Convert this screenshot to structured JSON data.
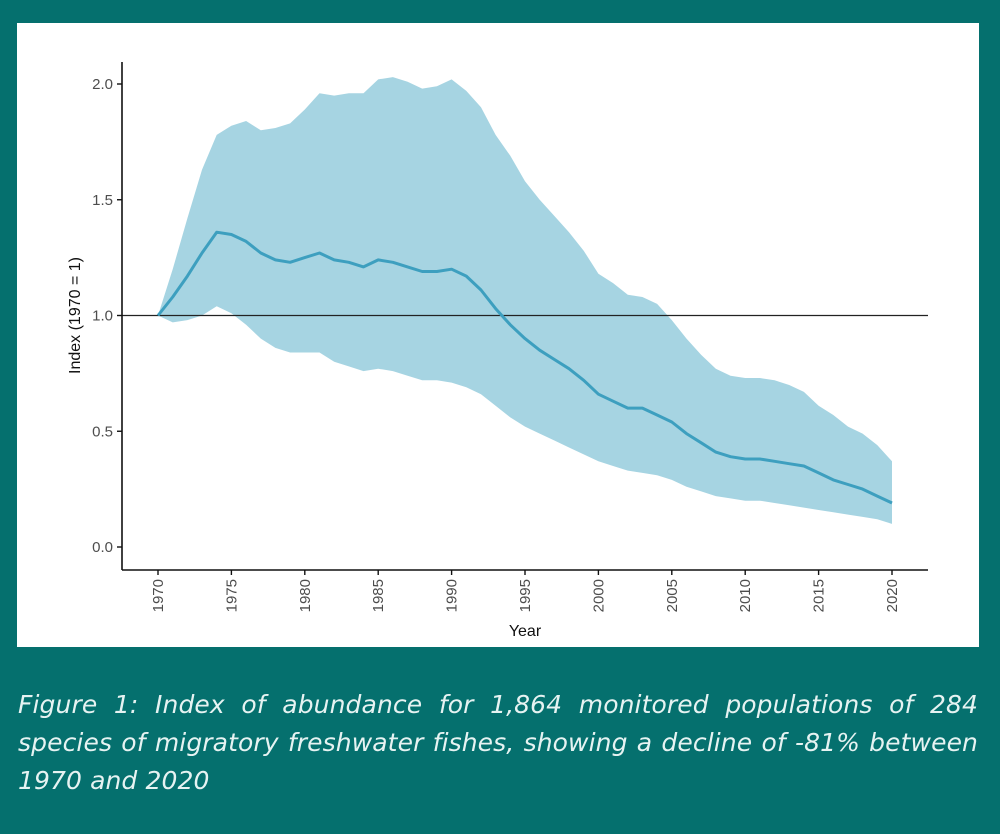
{
  "colors": {
    "background": "#05706e",
    "panel": "#ffffff",
    "band": "#a6d4e2",
    "line": "#3d9fbf",
    "axis": "#111111",
    "reference_line": "#222222",
    "caption_text": "#e6f3f2"
  },
  "caption": "Figure 1: Index of abundance for 1,864 monitored populations of 284 species of migratory freshwater fishes, showing a decline of -81% between 1970 and 2020",
  "chart_data": {
    "type": "line",
    "title": "",
    "xlabel": "Year",
    "ylabel": "Index (1970 = 1)",
    "xlim": [
      1967.5,
      2022.5
    ],
    "ylim": [
      -0.1,
      2.11
    ],
    "grid": false,
    "legend": "none",
    "reference_line": {
      "y": 1.0
    },
    "x_ticks": [
      1970,
      1975,
      1980,
      1985,
      1990,
      1995,
      2000,
      2005,
      2010,
      2015,
      2020
    ],
    "x_tick_labels": [
      "1970",
      "1975",
      "1980",
      "1985",
      "1990",
      "1995",
      "2000",
      "2005",
      "2010",
      "2015",
      "2020"
    ],
    "y_ticks": [
      0.0,
      0.5,
      1.0,
      1.5,
      2.0
    ],
    "y_tick_labels": [
      "0.0",
      "0.5",
      "1.0",
      "1.5",
      "2.0"
    ],
    "x": [
      1970,
      1971,
      1972,
      1973,
      1974,
      1975,
      1976,
      1977,
      1978,
      1979,
      1980,
      1981,
      1982,
      1983,
      1984,
      1985,
      1986,
      1987,
      1988,
      1989,
      1990,
      1991,
      1992,
      1993,
      1994,
      1995,
      1996,
      1997,
      1998,
      1999,
      2000,
      2001,
      2002,
      2003,
      2004,
      2005,
      2006,
      2007,
      2008,
      2009,
      2010,
      2011,
      2012,
      2013,
      2014,
      2015,
      2016,
      2017,
      2018,
      2019,
      2020
    ],
    "series": [
      {
        "name": "Index",
        "values": [
          1.0,
          1.08,
          1.17,
          1.27,
          1.36,
          1.35,
          1.32,
          1.27,
          1.24,
          1.23,
          1.25,
          1.27,
          1.24,
          1.23,
          1.21,
          1.24,
          1.23,
          1.21,
          1.19,
          1.19,
          1.2,
          1.17,
          1.11,
          1.03,
          0.96,
          0.9,
          0.85,
          0.81,
          0.77,
          0.72,
          0.66,
          0.63,
          0.6,
          0.6,
          0.57,
          0.54,
          0.49,
          0.45,
          0.41,
          0.39,
          0.38,
          0.38,
          0.37,
          0.36,
          0.35,
          0.32,
          0.29,
          0.27,
          0.25,
          0.22,
          0.19
        ]
      },
      {
        "name": "Upper confidence limit",
        "values": [
          1.0,
          1.2,
          1.42,
          1.63,
          1.78,
          1.82,
          1.84,
          1.8,
          1.81,
          1.83,
          1.89,
          1.96,
          1.95,
          1.96,
          1.96,
          2.02,
          2.03,
          2.01,
          1.98,
          1.99,
          2.02,
          1.97,
          1.9,
          1.78,
          1.69,
          1.58,
          1.5,
          1.43,
          1.36,
          1.28,
          1.18,
          1.14,
          1.09,
          1.08,
          1.05,
          0.98,
          0.9,
          0.83,
          0.77,
          0.74,
          0.73,
          0.73,
          0.72,
          0.7,
          0.67,
          0.61,
          0.57,
          0.52,
          0.49,
          0.44,
          0.37
        ]
      },
      {
        "name": "Lower confidence limit",
        "values": [
          1.0,
          0.97,
          0.98,
          1.0,
          1.04,
          1.01,
          0.96,
          0.9,
          0.86,
          0.84,
          0.84,
          0.84,
          0.8,
          0.78,
          0.76,
          0.77,
          0.76,
          0.74,
          0.72,
          0.72,
          0.71,
          0.69,
          0.66,
          0.61,
          0.56,
          0.52,
          0.49,
          0.46,
          0.43,
          0.4,
          0.37,
          0.35,
          0.33,
          0.32,
          0.31,
          0.29,
          0.26,
          0.24,
          0.22,
          0.21,
          0.2,
          0.2,
          0.19,
          0.18,
          0.17,
          0.16,
          0.15,
          0.14,
          0.13,
          0.12,
          0.1
        ]
      }
    ]
  }
}
